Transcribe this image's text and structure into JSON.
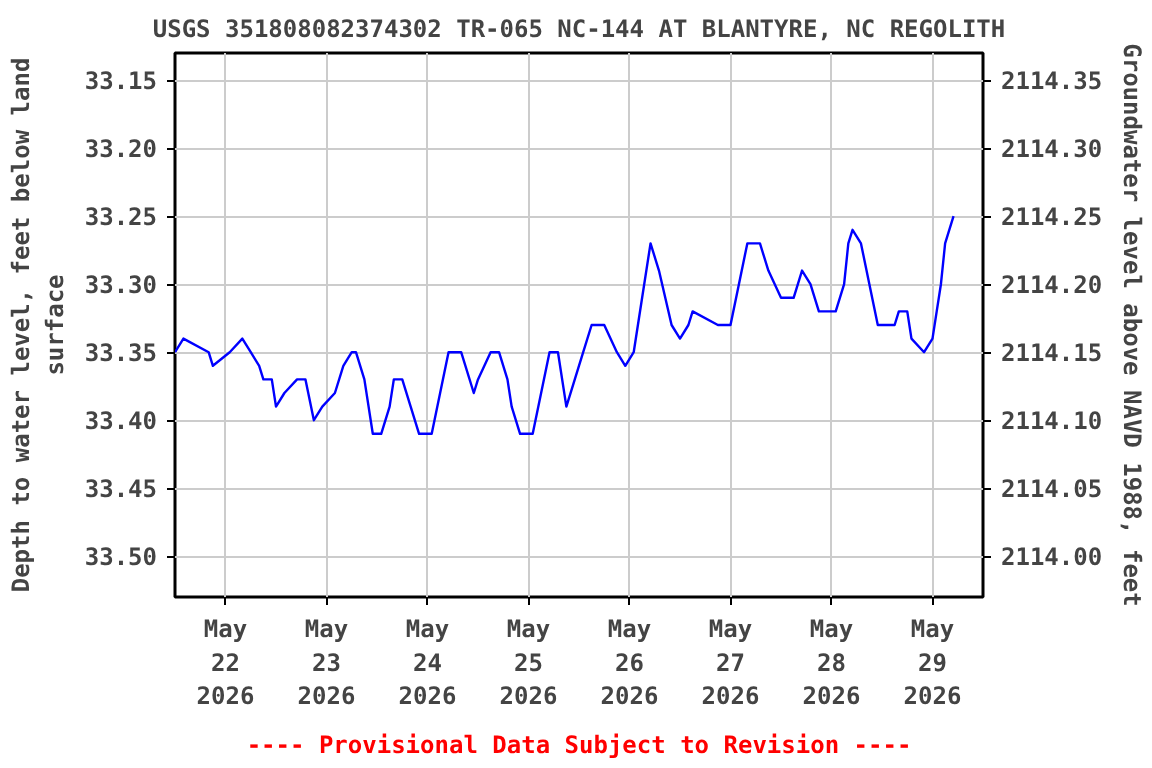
{
  "chart_data": {
    "type": "line",
    "title": "USGS 351808082374302 TR-065 NC-144 AT BLANTYRE, NC REGOLITH",
    "ylabel": "Depth to water level, feet below land surface",
    "y2label": "Groundwater level above NAVD 1988, feet",
    "annotations": [
      "---- Provisional Data Subject to Revision ----"
    ],
    "x": [
      "2026-05-21T12:00",
      "2026-05-21T14:00",
      "2026-05-21T20:00",
      "2026-05-21T21:00",
      "2026-05-22T01:00",
      "2026-05-22T04:00",
      "2026-05-22T06:00",
      "2026-05-22T08:00",
      "2026-05-22T09:00",
      "2026-05-22T11:00",
      "2026-05-22T12:00",
      "2026-05-22T14:00",
      "2026-05-22T17:00",
      "2026-05-22T19:00",
      "2026-05-22T21:00",
      "2026-05-22T23:00",
      "2026-05-23T02:00",
      "2026-05-23T04:00",
      "2026-05-23T06:00",
      "2026-05-23T07:00",
      "2026-05-23T09:00",
      "2026-05-23T11:00",
      "2026-05-23T13:00",
      "2026-05-23T15:00",
      "2026-05-23T16:00",
      "2026-05-23T18:00",
      "2026-05-23T20:00",
      "2026-05-23T22:00",
      "2026-05-24T01:00",
      "2026-05-24T03:00",
      "2026-05-24T05:00",
      "2026-05-24T08:00",
      "2026-05-24T11:00",
      "2026-05-24T12:00",
      "2026-05-24T15:00",
      "2026-05-24T17:00",
      "2026-05-24T19:00",
      "2026-05-24T20:00",
      "2026-05-24T22:00",
      "2026-05-25T01:00",
      "2026-05-25T03:00",
      "2026-05-25T05:00",
      "2026-05-25T07:00",
      "2026-05-25T09:00",
      "2026-05-25T11:00",
      "2026-05-25T13:00",
      "2026-05-25T15:00",
      "2026-05-25T18:00",
      "2026-05-25T21:00",
      "2026-05-25T23:00",
      "2026-05-26T01:00",
      "2026-05-26T03:00",
      "2026-05-26T05:00",
      "2026-05-26T07:00",
      "2026-05-26T10:00",
      "2026-05-26T12:00",
      "2026-05-26T14:00",
      "2026-05-26T15:00",
      "2026-05-26T21:00",
      "2026-05-27T00:00",
      "2026-05-27T02:00",
      "2026-05-27T04:00",
      "2026-05-27T07:00",
      "2026-05-27T09:00",
      "2026-05-27T12:00",
      "2026-05-27T15:00",
      "2026-05-27T17:00",
      "2026-05-27T19:00",
      "2026-05-27T21:00",
      "2026-05-28T01:00",
      "2026-05-28T03:00",
      "2026-05-28T04:00",
      "2026-05-28T05:00",
      "2026-05-28T07:00",
      "2026-05-28T09:00",
      "2026-05-28T11:00",
      "2026-05-28T15:00",
      "2026-05-28T16:00",
      "2026-05-28T18:00",
      "2026-05-28T19:00",
      "2026-05-28T22:00",
      "2026-05-29T00:00",
      "2026-05-29T01:00",
      "2026-05-29T02:00",
      "2026-05-29T03:00",
      "2026-05-29T05:00"
    ],
    "series": [
      {
        "color": "#0000ff",
        "values": [
          33.35,
          33.34,
          33.35,
          33.36,
          33.35,
          33.34,
          33.35,
          33.36,
          33.37,
          33.37,
          33.39,
          33.38,
          33.37,
          33.37,
          33.4,
          33.39,
          33.38,
          33.36,
          33.35,
          33.35,
          33.37,
          33.41,
          33.41,
          33.39,
          33.37,
          33.37,
          33.39,
          33.41,
          33.41,
          33.38,
          33.35,
          33.35,
          33.38,
          33.37,
          33.35,
          33.35,
          33.37,
          33.39,
          33.41,
          33.41,
          33.38,
          33.35,
          33.35,
          33.39,
          33.37,
          33.35,
          33.33,
          33.33,
          33.35,
          33.36,
          33.35,
          33.31,
          33.27,
          33.29,
          33.33,
          33.34,
          33.33,
          33.32,
          33.33,
          33.33,
          33.3,
          33.27,
          33.27,
          33.29,
          33.31,
          33.31,
          33.29,
          33.3,
          33.32,
          33.32,
          33.3,
          33.27,
          33.26,
          33.27,
          33.3,
          33.33,
          33.33,
          33.32,
          33.32,
          33.34,
          33.35,
          33.34,
          33.32,
          33.3,
          33.27,
          33.25
        ]
      }
    ],
    "xlim": [
      "2026-05-21T12:00",
      "2026-05-29T12:00"
    ],
    "xticks": [
      {
        "value": "2026-05-22",
        "label": "May\n22\n2026"
      },
      {
        "value": "2026-05-23",
        "label": "May\n23\n2026"
      },
      {
        "value": "2026-05-24",
        "label": "May\n24\n2026"
      },
      {
        "value": "2026-05-25",
        "label": "May\n25\n2026"
      },
      {
        "value": "2026-05-26",
        "label": "May\n26\n2026"
      },
      {
        "value": "2026-05-27",
        "label": "May\n27\n2026"
      },
      {
        "value": "2026-05-28",
        "label": "May\n28\n2026"
      },
      {
        "value": "2026-05-29",
        "label": "May\n29\n2026"
      }
    ],
    "ylim": [
      33.53,
      33.13
    ],
    "yticks": [
      {
        "value": 33.15,
        "label": "33.15"
      },
      {
        "value": 33.2,
        "label": "33.20"
      },
      {
        "value": 33.25,
        "label": "33.25"
      },
      {
        "value": 33.3,
        "label": "33.30"
      },
      {
        "value": 33.35,
        "label": "33.35"
      },
      {
        "value": 33.4,
        "label": "33.40"
      },
      {
        "value": 33.45,
        "label": "33.45"
      },
      {
        "value": 33.5,
        "label": "33.50"
      }
    ],
    "y2lim": [
      2113.97,
      2114.37
    ],
    "y2ticks": [
      {
        "value": 2114.0,
        "label": "2114.00"
      },
      {
        "value": 2114.05,
        "label": "2114.05"
      },
      {
        "value": 2114.1,
        "label": "2114.10"
      },
      {
        "value": 2114.15,
        "label": "2114.15"
      },
      {
        "value": 2114.2,
        "label": "2114.20"
      },
      {
        "value": 2114.25,
        "label": "2114.25"
      },
      {
        "value": 2114.3,
        "label": "2114.30"
      },
      {
        "value": 2114.35,
        "label": "2114.35"
      }
    ],
    "grid": true
  }
}
